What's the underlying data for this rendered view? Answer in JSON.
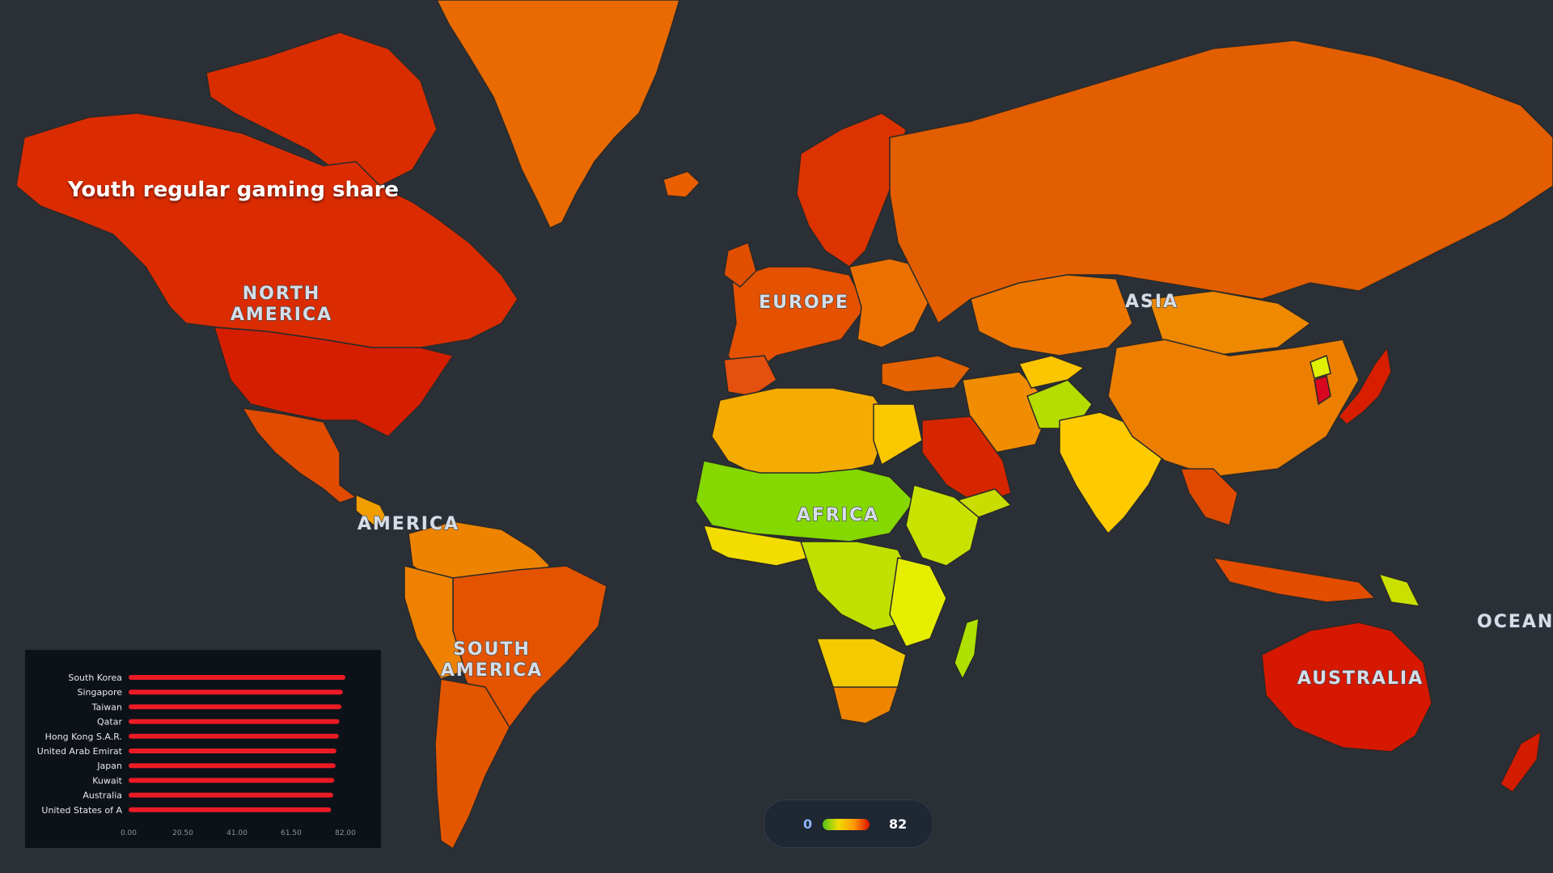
{
  "title": "Youth regular gaming share",
  "continent_labels": {
    "north_america": [
      "NORTH",
      "AMERICA"
    ],
    "central_america": "AMERICA",
    "south_america": [
      "SOUTH",
      "AMERICA"
    ],
    "europe": "EUROPE",
    "africa": "AFRICA",
    "asia": "ASIA",
    "oceania": "OCEANI",
    "australia": "AUSTRALIA"
  },
  "legend": {
    "min_label": "0",
    "max_label": "82",
    "colors": [
      "#53c219",
      "#eedc00",
      "#ff9900",
      "#dd1100"
    ]
  },
  "colors": {
    "background": "#2b2f36",
    "bar": "#ea1b24",
    "panel": "#0d1118"
  },
  "chart_data": {
    "type": "bar",
    "orientation": "horizontal",
    "categories": [
      "South Korea",
      "Singapore",
      "Taiwan",
      "Qatar",
      "Hong Kong S.A.R.",
      "United Arab Emirat",
      "Japan",
      "Kuwait",
      "Australia",
      "United States of A"
    ],
    "values": [
      82.0,
      81.0,
      80.5,
      79.7,
      79.5,
      78.6,
      78.3,
      77.8,
      77.4,
      76.6
    ],
    "xlim": [
      0,
      82
    ],
    "xticks": [
      "0.00",
      "20.50",
      "41.00",
      "61.50",
      "82.00"
    ],
    "title": "",
    "xlabel": "",
    "ylabel": ""
  }
}
